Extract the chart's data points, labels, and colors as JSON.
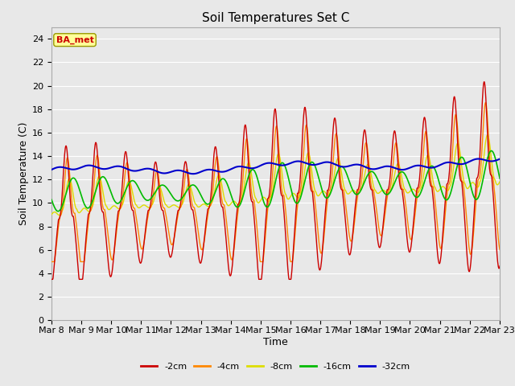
{
  "title": "Soil Temperatures Set C",
  "xlabel": "Time",
  "ylabel": "Soil Temperature (C)",
  "ylim": [
    0,
    25
  ],
  "yticks": [
    0,
    2,
    4,
    6,
    8,
    10,
    12,
    14,
    16,
    18,
    20,
    22,
    24
  ],
  "xtick_labels": [
    "Mar 8",
    "Mar 9",
    "Mar 10",
    "Mar 11",
    "Mar 12",
    "Mar 13",
    "Mar 14",
    "Mar 15",
    "Mar 16",
    "Mar 17",
    "Mar 18",
    "Mar 19",
    "Mar 20",
    "Mar 21",
    "Mar 22",
    "Mar 23"
  ],
  "legend_label": "BA_met",
  "legend_bg": "#FFFF99",
  "legend_border": "#999900",
  "series_labels": [
    "-2cm",
    "-4cm",
    "-8cm",
    "-16cm",
    "-32cm"
  ],
  "series_colors": [
    "#CC0000",
    "#FF8800",
    "#DDDD00",
    "#00BB00",
    "#0000CC"
  ],
  "bg_color": "#E8E8E8",
  "plot_bg": "#E8E8E8",
  "grid_color": "#FFFFFF",
  "title_fontsize": 11,
  "axis_label_fontsize": 9,
  "tick_fontsize": 8
}
